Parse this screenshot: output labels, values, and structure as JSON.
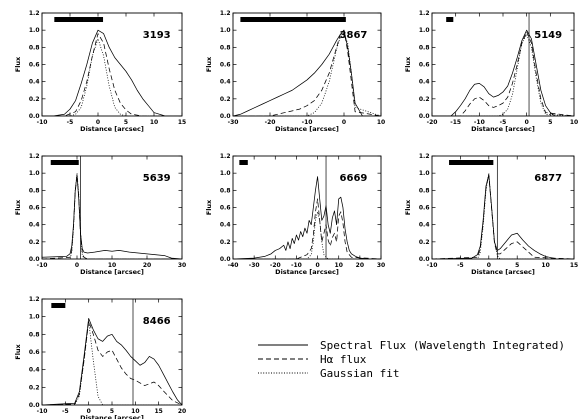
{
  "chart_data": [
    {
      "type": "line",
      "label": "3193",
      "xlabel": "Distance [arcsec]",
      "ylabel": "Flux",
      "xlim": [
        -10,
        15
      ],
      "ylim": [
        0,
        1.2
      ],
      "xticks": [
        -10,
        -5,
        0,
        5,
        10,
        15
      ],
      "yticks": [
        0.0,
        0.2,
        0.4,
        0.6,
        0.8,
        1.0,
        1.2
      ],
      "bar": [
        -7.8,
        0.9
      ],
      "vline": null,
      "series": [
        {
          "name": "Spectral Flux (Wavelength Integrated)",
          "style": "solid",
          "x": [
            -10,
            -8,
            -6,
            -5,
            -4,
            -3,
            -2,
            -1,
            0,
            1,
            2,
            3,
            4,
            5,
            6,
            7,
            8,
            9,
            10,
            12,
            15
          ],
          "y": [
            0,
            0,
            0.02,
            0.08,
            0.18,
            0.38,
            0.6,
            0.85,
            1.0,
            0.96,
            0.8,
            0.68,
            0.6,
            0.52,
            0.42,
            0.3,
            0.2,
            0.12,
            0.04,
            0,
            0
          ]
        },
        {
          "name": "Hα flux",
          "style": "dashed",
          "x": [
            -10,
            -6,
            -4,
            -3,
            -2,
            -1,
            0,
            1,
            2,
            3,
            4,
            5,
            6,
            8,
            15
          ],
          "y": [
            0,
            0,
            0.05,
            0.18,
            0.4,
            0.7,
            0.96,
            0.85,
            0.55,
            0.3,
            0.15,
            0.07,
            0.02,
            0,
            0
          ]
        },
        {
          "name": "Gaussian fit",
          "style": "dotted",
          "x": [
            -10,
            -5,
            -4,
            -3,
            -2,
            -1,
            0,
            1,
            2,
            3,
            4,
            5,
            15
          ],
          "y": [
            0,
            0,
            0.02,
            0.1,
            0.35,
            0.7,
            0.9,
            0.7,
            0.35,
            0.1,
            0.02,
            0,
            0
          ]
        }
      ]
    },
    {
      "type": "line",
      "label": "3867",
      "xlabel": "Distance [arcsec]",
      "ylabel": "Flux",
      "xlim": [
        -30,
        10
      ],
      "ylim": [
        0,
        1.2
      ],
      "xticks": [
        -30,
        -20,
        -10,
        0,
        10
      ],
      "yticks": [
        0.0,
        0.2,
        0.4,
        0.6,
        0.8,
        1.0,
        1.2
      ],
      "bar": [
        -28,
        0.5
      ],
      "vline": null,
      "series": [
        {
          "name": "Spectral Flux (Wavelength Integrated)",
          "style": "solid",
          "x": [
            -30,
            -28,
            -26,
            -24,
            -22,
            -20,
            -18,
            -16,
            -14,
            -12,
            -10,
            -8,
            -6,
            -4,
            -3,
            -2,
            -1,
            0,
            1,
            2,
            3,
            5,
            10
          ],
          "y": [
            0,
            0.02,
            0.06,
            0.1,
            0.14,
            0.18,
            0.22,
            0.26,
            0.3,
            0.36,
            0.42,
            0.5,
            0.6,
            0.72,
            0.8,
            0.88,
            0.95,
            1.0,
            0.8,
            0.5,
            0.15,
            0,
            0
          ]
        },
        {
          "name": "Hα flux",
          "style": "dashed",
          "x": [
            -30,
            -20,
            -16,
            -12,
            -10,
            -8,
            -6,
            -4,
            -2,
            -1,
            0,
            1,
            2,
            3,
            10
          ],
          "y": [
            0,
            0,
            0.04,
            0.08,
            0.12,
            0.18,
            0.3,
            0.5,
            0.8,
            0.95,
            1.0,
            0.75,
            0.4,
            0.05,
            0
          ]
        },
        {
          "name": "Gaussian fit",
          "style": "dotted",
          "x": [
            -30,
            -10,
            -8,
            -6,
            -4,
            -2,
            -1,
            0,
            1,
            2,
            3,
            10
          ],
          "y": [
            0,
            0,
            0.04,
            0.15,
            0.4,
            0.78,
            0.92,
            0.95,
            0.85,
            0.5,
            0.1,
            0
          ]
        }
      ]
    },
    {
      "type": "line",
      "label": "5149",
      "xlabel": "Distance [arcsec]",
      "ylabel": "Flux",
      "xlim": [
        -20,
        10
      ],
      "ylim": [
        0,
        1.2
      ],
      "xticks": [
        -20,
        -15,
        -10,
        -5,
        0,
        5,
        10
      ],
      "yticks": [
        0.0,
        0.2,
        0.4,
        0.6,
        0.8,
        1.0,
        1.2
      ],
      "bar": [
        -17,
        -15.5
      ],
      "vline": 0.5,
      "series": [
        {
          "name": "Spectral Flux (Wavelength Integrated)",
          "style": "solid",
          "x": [
            -20,
            -16,
            -15,
            -14,
            -13,
            -12,
            -11,
            -10,
            -9,
            -8,
            -7,
            -6,
            -5,
            -4,
            -3,
            -2,
            -1,
            0,
            1,
            2,
            3,
            4,
            5,
            6,
            10
          ],
          "y": [
            0,
            0,
            0.05,
            0.12,
            0.2,
            0.3,
            0.37,
            0.38,
            0.34,
            0.26,
            0.22,
            0.24,
            0.28,
            0.35,
            0.5,
            0.68,
            0.88,
            1.0,
            0.9,
            0.6,
            0.3,
            0.12,
            0.04,
            0,
            0
          ]
        },
        {
          "name": "Hα flux",
          "style": "dashed",
          "x": [
            -20,
            -14,
            -13,
            -12,
            -11,
            -10,
            -9,
            -8,
            -7,
            -6,
            -5,
            -4,
            -3,
            -2,
            -1,
            0,
            1,
            2,
            3,
            4,
            10
          ],
          "y": [
            0,
            0,
            0.06,
            0.14,
            0.2,
            0.22,
            0.18,
            0.12,
            0.1,
            0.12,
            0.15,
            0.22,
            0.38,
            0.6,
            0.85,
            0.98,
            0.85,
            0.5,
            0.2,
            0.04,
            0
          ]
        },
        {
          "name": "Gaussian fit",
          "style": "dotted",
          "x": [
            -20,
            -6,
            -5,
            -4,
            -3,
            -2,
            -1,
            0,
            1,
            2,
            3,
            4,
            10
          ],
          "y": [
            0,
            0,
            0.02,
            0.08,
            0.25,
            0.55,
            0.85,
            0.95,
            0.8,
            0.45,
            0.15,
            0.02,
            0
          ]
        }
      ]
    },
    {
      "type": "line",
      "label": "5639",
      "xlabel": "Distance [arcsec]",
      "ylabel": "Flux",
      "xlim": [
        -10,
        30
      ],
      "ylim": [
        0,
        1.2
      ],
      "xticks": [
        -10,
        0,
        10,
        20,
        30
      ],
      "yticks": [
        0.0,
        0.2,
        0.4,
        0.6,
        0.8,
        1.0,
        1.2
      ],
      "bar": [
        -7.5,
        0.5
      ],
      "vline": 1.0,
      "series": [
        {
          "name": "Spectral Flux (Wavelength Integrated)",
          "style": "solid",
          "x": [
            -10,
            -3,
            -2,
            -1.5,
            -1,
            -0.5,
            0,
            0.5,
            1,
            1.5,
            2,
            3,
            5,
            8,
            10,
            12,
            15,
            20,
            25,
            27,
            30
          ],
          "y": [
            0.02,
            0.03,
            0.06,
            0.15,
            0.4,
            0.8,
            0.98,
            0.7,
            0.3,
            0.12,
            0.08,
            0.07,
            0.08,
            0.1,
            0.09,
            0.1,
            0.08,
            0.06,
            0.04,
            0.01,
            0
          ]
        },
        {
          "name": "Hα flux",
          "style": "dashed",
          "x": [
            -10,
            -2,
            -1.5,
            -1,
            -0.5,
            0,
            0.5,
            1,
            1.5,
            2,
            3,
            30
          ],
          "y": [
            0,
            0.02,
            0.1,
            0.38,
            0.78,
            0.98,
            0.72,
            0.3,
            0.08,
            0.02,
            0,
            0
          ]
        },
        {
          "name": "Gaussian fit",
          "style": "dotted",
          "x": [
            -10,
            -2,
            -1.5,
            -1,
            -0.5,
            0,
            0.5,
            1,
            1.5,
            2,
            30
          ],
          "y": [
            0,
            0,
            0.08,
            0.35,
            0.8,
            1.0,
            0.75,
            0.3,
            0.05,
            0,
            0
          ]
        }
      ]
    },
    {
      "type": "line",
      "label": "6669",
      "xlabel": "Distance [arcsec]",
      "ylabel": "Flux",
      "xlim": [
        -40,
        30
      ],
      "ylim": [
        0,
        1.2
      ],
      "xticks": [
        -40,
        -30,
        -20,
        -10,
        0,
        10,
        20,
        30
      ],
      "yticks": [
        0.0,
        0.2,
        0.4,
        0.6,
        0.8,
        1.0,
        1.2
      ],
      "bar": [
        -37,
        -33
      ],
      "vline": 4,
      "series": [
        {
          "name": "Spectral Flux (Wavelength Integrated)",
          "style": "solid",
          "x": [
            -40,
            -30,
            -25,
            -22,
            -20,
            -18,
            -16,
            -15,
            -14,
            -13,
            -12,
            -11,
            -10,
            -9,
            -8,
            -7,
            -6,
            -5,
            -4,
            -3,
            -2,
            -1,
            0,
            1,
            2,
            3,
            4,
            5,
            6,
            7,
            8,
            9,
            10,
            11,
            12,
            13,
            14,
            15,
            16,
            18,
            20,
            25,
            30
          ],
          "y": [
            0,
            0.01,
            0.03,
            0.06,
            0.1,
            0.12,
            0.16,
            0.1,
            0.2,
            0.12,
            0.24,
            0.18,
            0.28,
            0.22,
            0.32,
            0.26,
            0.36,
            0.3,
            0.45,
            0.4,
            0.6,
            0.8,
            0.96,
            0.7,
            0.45,
            0.5,
            0.62,
            0.4,
            0.3,
            0.48,
            0.56,
            0.4,
            0.7,
            0.72,
            0.6,
            0.35,
            0.2,
            0.1,
            0.06,
            0.03,
            0.01,
            0,
            0
          ]
        },
        {
          "name": "Hα flux",
          "style": "dashed",
          "x": [
            -40,
            -10,
            -5,
            -3,
            -2,
            -1,
            0,
            1,
            2,
            3,
            4,
            5,
            6,
            7,
            8,
            9,
            10,
            11,
            12,
            13,
            14,
            16,
            30
          ],
          "y": [
            0,
            0,
            0.05,
            0.12,
            0.28,
            0.55,
            0.7,
            0.45,
            0.2,
            0.3,
            0.4,
            0.22,
            0.15,
            0.25,
            0.3,
            0.2,
            0.5,
            0.55,
            0.42,
            0.2,
            0.08,
            0.02,
            0
          ]
        },
        {
          "name": "Gaussian fit",
          "style": "dotted",
          "x": [
            -40,
            -5,
            -3,
            -2,
            -1,
            0,
            1,
            2,
            3,
            5,
            30
          ],
          "y": [
            0,
            0,
            0.05,
            0.2,
            0.45,
            0.55,
            0.45,
            0.2,
            0.05,
            0,
            0
          ]
        }
      ]
    },
    {
      "type": "line",
      "label": "6877",
      "xlabel": "Distance [arcsec]",
      "ylabel": "Flux",
      "xlim": [
        -10,
        15
      ],
      "ylim": [
        0,
        1.2
      ],
      "xticks": [
        -10,
        -5,
        0,
        5,
        10,
        15
      ],
      "yticks": [
        0.0,
        0.2,
        0.4,
        0.6,
        0.8,
        1.0,
        1.2
      ],
      "bar": [
        -7,
        0.8
      ],
      "vline": 1.5,
      "series": [
        {
          "name": "Spectral Flux (Wavelength Integrated)",
          "style": "solid",
          "x": [
            -10,
            -3,
            -2,
            -1.5,
            -1,
            -0.5,
            0,
            0.5,
            1,
            1.5,
            2,
            3,
            4,
            5,
            6,
            7,
            8,
            9,
            10,
            12,
            15
          ],
          "y": [
            0,
            0.01,
            0.05,
            0.15,
            0.45,
            0.85,
            0.98,
            0.6,
            0.2,
            0.1,
            0.12,
            0.2,
            0.28,
            0.3,
            0.22,
            0.15,
            0.1,
            0.06,
            0.03,
            0,
            0
          ]
        },
        {
          "name": "Hα flux",
          "style": "dashed",
          "x": [
            -10,
            -2,
            -1.5,
            -1,
            -0.5,
            0,
            0.5,
            1,
            1.5,
            2,
            3,
            4,
            5,
            6,
            7,
            8,
            15
          ],
          "y": [
            0,
            0.02,
            0.12,
            0.42,
            0.82,
            0.98,
            0.58,
            0.18,
            0.06,
            0.06,
            0.12,
            0.18,
            0.2,
            0.14,
            0.08,
            0.02,
            0
          ]
        },
        {
          "name": "Gaussian fit",
          "style": "dotted",
          "x": [
            -10,
            -2,
            -1.5,
            -1,
            -0.5,
            0,
            0.5,
            1,
            1.5,
            2,
            15
          ],
          "y": [
            0,
            0,
            0.08,
            0.38,
            0.8,
            1.0,
            0.6,
            0.2,
            0.04,
            0,
            0
          ]
        }
      ]
    },
    {
      "type": "line",
      "label": "8466",
      "xlabel": "Distance [arcsec]",
      "ylabel": "Flux",
      "xlim": [
        -10,
        20
      ],
      "ylim": [
        0,
        1.2
      ],
      "xticks": [
        -10,
        -5,
        0,
        5,
        10,
        15,
        20
      ],
      "yticks": [
        0.0,
        0.2,
        0.4,
        0.6,
        0.8,
        1.0,
        1.2
      ],
      "bar": [
        -8,
        -5
      ],
      "vline": 9.5,
      "series": [
        {
          "name": "Spectral Flux (Wavelength Integrated)",
          "style": "solid",
          "x": [
            -10,
            -3,
            -2,
            -1,
            0,
            1,
            2,
            3,
            4,
            5,
            6,
            7,
            8,
            9,
            10,
            11,
            12,
            13,
            14,
            15,
            16,
            17,
            18,
            19,
            20
          ],
          "y": [
            0,
            0.02,
            0.15,
            0.55,
            0.98,
            0.85,
            0.75,
            0.72,
            0.78,
            0.8,
            0.72,
            0.68,
            0.62,
            0.55,
            0.5,
            0.45,
            0.48,
            0.55,
            0.52,
            0.45,
            0.35,
            0.25,
            0.15,
            0.06,
            0
          ]
        },
        {
          "name": "Hα flux",
          "style": "dashed",
          "x": [
            -10,
            -3,
            -2,
            -1,
            0,
            1,
            2,
            3,
            4,
            5,
            6,
            7,
            8,
            9,
            10,
            11,
            12,
            13,
            14,
            15,
            16,
            18,
            20
          ],
          "y": [
            0,
            0.01,
            0.12,
            0.5,
            0.95,
            0.8,
            0.62,
            0.55,
            0.6,
            0.62,
            0.52,
            0.42,
            0.35,
            0.3,
            0.28,
            0.25,
            0.22,
            0.24,
            0.26,
            0.22,
            0.16,
            0.05,
            0
          ]
        },
        {
          "name": "Gaussian fit",
          "style": "dotted",
          "x": [
            -10,
            -3,
            -2,
            -1,
            0,
            1,
            2,
            3,
            20
          ],
          "y": [
            0,
            0,
            0.1,
            0.5,
            0.95,
            0.5,
            0.1,
            0,
            0
          ]
        }
      ]
    }
  ],
  "legend": [
    {
      "label": "Spectral Flux (Wavelength Integrated)",
      "style": "solid"
    },
    {
      "label": "Hα flux",
      "style": "dashed"
    },
    {
      "label": "Gaussian fit",
      "style": "dotted"
    }
  ]
}
